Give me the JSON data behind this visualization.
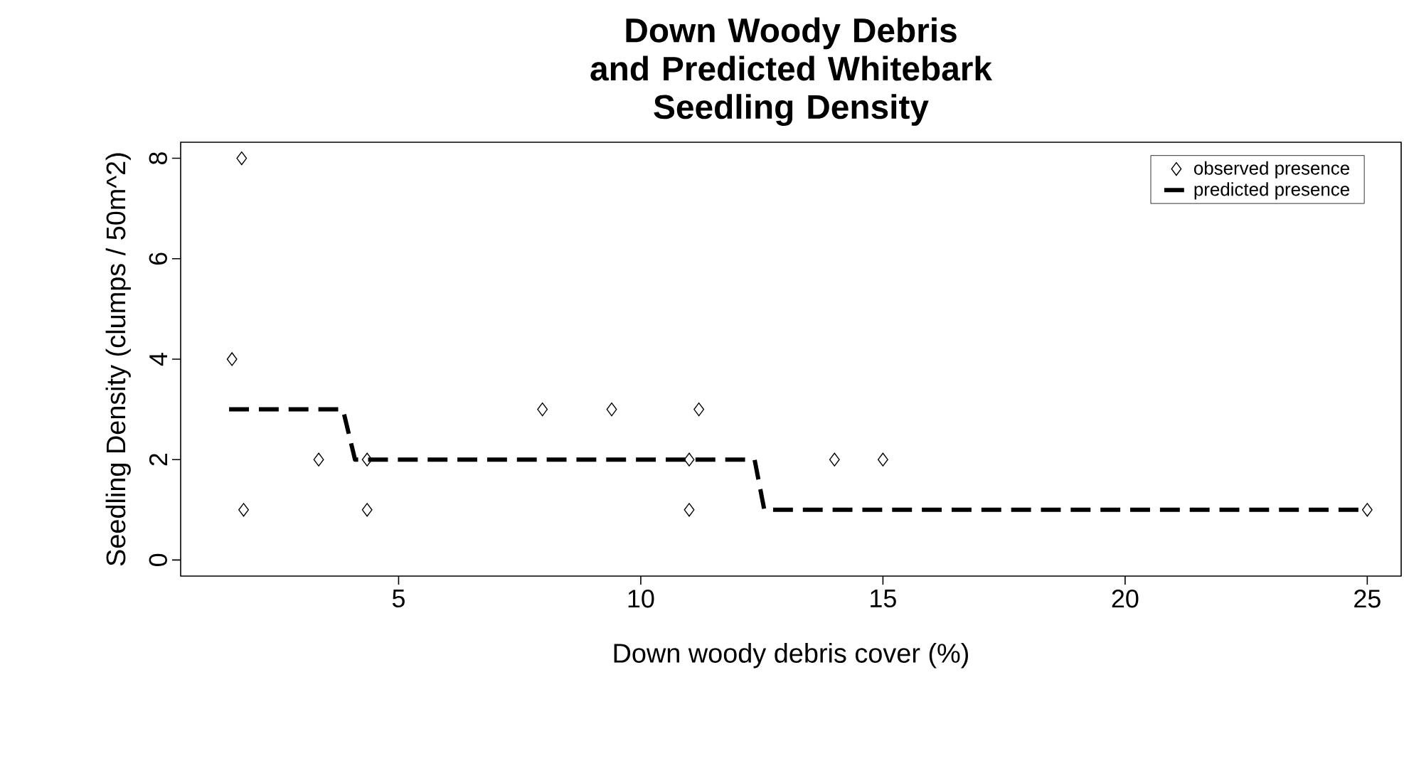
{
  "chart_data": {
    "type": "scatter",
    "title": "Down Woody Debris and Predicted Whitebark Seedling Density",
    "xlabel": "Down woody debris cover (%)",
    "ylabel": "Seedling Density (clumps / 50m^2)",
    "xlim": [
      0.5,
      25.7
    ],
    "ylim": [
      -0.32,
      8.32
    ],
    "xticks": [
      5,
      10,
      15,
      20,
      25
    ],
    "yticks": [
      0,
      2,
      4,
      6,
      8
    ],
    "grid": false,
    "legend": "top right",
    "series": [
      {
        "name": "observed presence",
        "marker": "diamond",
        "color": "#000000",
        "x": [
          1.56,
          1.76,
          1.8,
          3.35,
          4.35,
          4.35,
          7.97,
          9.4,
          11.0,
          11.0,
          11.2,
          14.0,
          15.0,
          25.0
        ],
        "values": [
          4,
          8,
          1,
          2,
          2,
          1,
          3,
          3,
          2,
          1,
          3,
          2,
          2,
          1
        ]
      },
      {
        "name": "predicted presence",
        "type": "line",
        "line_style": "dashed",
        "marker": "none",
        "color": "#000000",
        "x": [
          1.5,
          3.85,
          4.1,
          12.35,
          12.55,
          25.0
        ],
        "values": [
          3,
          3,
          2,
          2,
          1,
          1
        ]
      }
    ]
  }
}
